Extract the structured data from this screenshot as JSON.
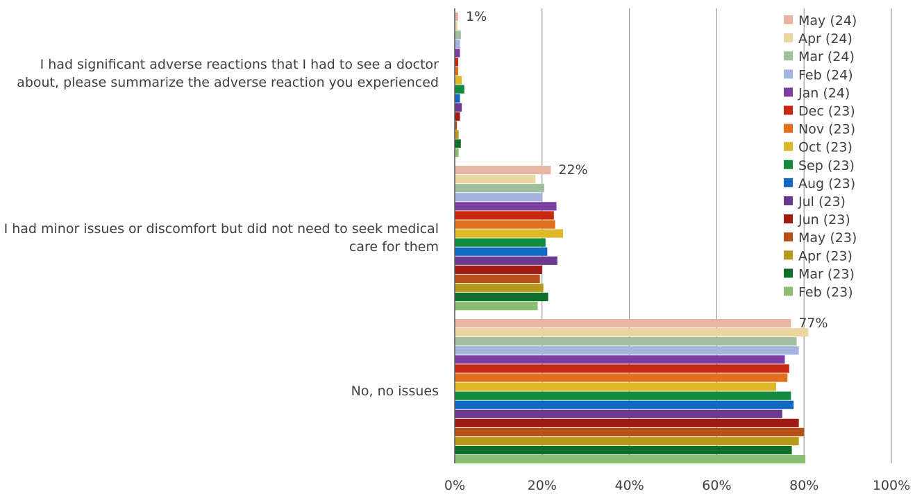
{
  "chart_data": {
    "type": "bar",
    "orientation": "horizontal",
    "categories": [
      "I had significant adverse reactions that I had to see a doctor about, please summarize the adverse reaction you experienced",
      "I had minor issues or discomfort but did not need to seek medical care for them",
      "No, no issues"
    ],
    "series": [
      {
        "name": "May (24)",
        "color": "#e8b4a4",
        "values": [
          0.8,
          22.0,
          77.0
        ]
      },
      {
        "name": "Apr (24)",
        "color": "#e9d6a0",
        "values": [
          0.6,
          18.5,
          81.0
        ]
      },
      {
        "name": "Mar (24)",
        "color": "#9fbf9f",
        "values": [
          1.4,
          20.5,
          78.3
        ]
      },
      {
        "name": "Feb (24)",
        "color": "#a4b4dc",
        "values": [
          1.2,
          20.0,
          78.8
        ]
      },
      {
        "name": "Jan (24)",
        "color": "#7b3fa0",
        "values": [
          1.2,
          23.3,
          75.6
        ]
      },
      {
        "name": "Dec (23)",
        "color": "#c8280f",
        "values": [
          0.8,
          22.7,
          76.6
        ]
      },
      {
        "name": "Nov (23)",
        "color": "#e0701e",
        "values": [
          0.8,
          23.0,
          76.2
        ]
      },
      {
        "name": "Oct (23)",
        "color": "#ddb92a",
        "values": [
          1.6,
          24.8,
          73.6
        ]
      },
      {
        "name": "Sep (23)",
        "color": "#128a3f",
        "values": [
          2.2,
          20.8,
          77.0
        ]
      },
      {
        "name": "Aug (23)",
        "color": "#1368c4",
        "values": [
          1.2,
          21.2,
          77.6
        ]
      },
      {
        "name": "Jul (23)",
        "color": "#6a3a90",
        "values": [
          1.6,
          23.5,
          75.0
        ]
      },
      {
        "name": "Jun (23)",
        "color": "#a01c12",
        "values": [
          1.2,
          20.0,
          78.8
        ]
      },
      {
        "name": "May (23)",
        "color": "#b8501a",
        "values": [
          0.5,
          19.5,
          80.0
        ]
      },
      {
        "name": "Apr (23)",
        "color": "#b59a1e",
        "values": [
          0.9,
          20.3,
          78.8
        ]
      },
      {
        "name": "Mar (23)",
        "color": "#0f6e2a",
        "values": [
          1.4,
          21.4,
          77.2
        ]
      },
      {
        "name": "Feb (23)",
        "color": "#8bbd74",
        "values": [
          0.9,
          19.0,
          80.3
        ]
      }
    ],
    "data_labels": [
      "1%",
      "22%",
      "77%"
    ],
    "x_ticks": [
      "0%",
      "20%",
      "40%",
      "60%",
      "80%",
      "100%"
    ],
    "xlim": [
      0,
      100
    ],
    "grid": "vertical",
    "legend_position": "right",
    "title": "",
    "xlabel": "",
    "ylabel": ""
  }
}
